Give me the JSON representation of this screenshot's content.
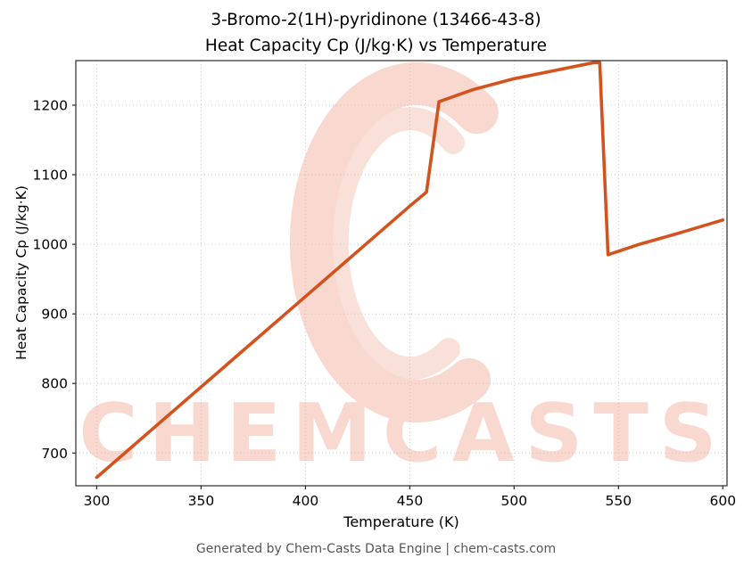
{
  "chart": {
    "title_line1": "3-Bromo-2(1H)-pyridinone (13466-43-8)",
    "title_line2": "Heat Capacity Cp (J/kg·K) vs Temperature",
    "xlabel": "Temperature (K)",
    "ylabel": "Heat Capacity Cp (J/kg·K)"
  },
  "footer": {
    "text": "Generated by Chem-Casts Data Engine | chem-casts.com"
  },
  "watermark": {
    "text": "CHEMCASTS",
    "logo": "c-swirl-logo",
    "color": "#efa793",
    "opacity": 0.45
  },
  "chart_data": {
    "type": "line",
    "title": "3-Bromo-2(1H)-pyridinone (13466-43-8) Heat Capacity Cp (J/kg·K) vs Temperature",
    "xlabel": "Temperature (K)",
    "ylabel": "Heat Capacity Cp (J/kg·K)",
    "xlim": [
      290,
      602
    ],
    "ylim": [
      653,
      1264
    ],
    "x_ticks": [
      300,
      350,
      400,
      450,
      500,
      550,
      600
    ],
    "y_ticks": [
      700,
      800,
      900,
      1000,
      1100,
      1200
    ],
    "grid": true,
    "legend": false,
    "line_color": "#d4521d",
    "series": [
      {
        "name": "Heat Capacity Cp",
        "x": [
          300,
          350,
          400,
          450,
          458,
          464,
          480,
          500,
          520,
          538,
          541,
          545,
          560,
          580,
          600
        ],
        "y": [
          665,
          795,
          925,
          1055,
          1075,
          1205,
          1222,
          1238,
          1250,
          1261,
          1261,
          985,
          1000,
          1017,
          1035
        ]
      }
    ]
  }
}
